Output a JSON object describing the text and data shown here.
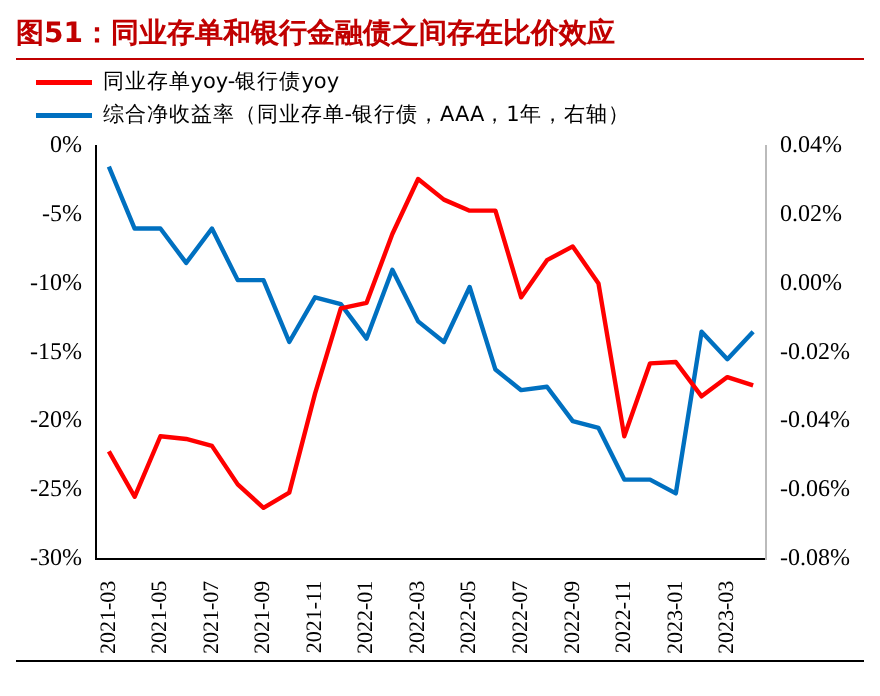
{
  "chart_data": {
    "type": "line",
    "title": "图51：同业存单和银行金融债之间存在比价效应",
    "categories": [
      "2021-03",
      null,
      "2021-05",
      null,
      "2021-07",
      null,
      "2021-09",
      null,
      "2021-11",
      null,
      "2022-01",
      null,
      "2022-03",
      null,
      "2022-05",
      null,
      "2022-07",
      null,
      "2022-09",
      null,
      "2022-11",
      null,
      "2023-01",
      null,
      "2023-03",
      null
    ],
    "series": [
      {
        "name": "同业存单yoy-银行债yoy",
        "color": "#ff0000",
        "values": [
          -22.2,
          -25.5,
          -21.1,
          -21.3,
          -21.8,
          -24.6,
          -26.3,
          -25.2,
          -18,
          -11.8,
          -11.4,
          -6.4,
          -2.4,
          -3.9,
          -4.7,
          -4.7,
          -11.0,
          -8.3,
          -7.3,
          -10.0,
          -21.1,
          -15.8,
          -15.7,
          -18.2,
          -16.8,
          -17.4
        ]
      },
      {
        "name": "综合净收益率（同业存单-银行债，AAA，1年，右轴）",
        "color": "#0070c0",
        "axis": "y2",
        "values": [
          0.034,
          0.016,
          0.016,
          0.006,
          0.016,
          0.001,
          0.001,
          -0.017,
          -0.004,
          -0.006,
          -0.016,
          0.004,
          -0.011,
          -0.017,
          -0.001,
          -0.025,
          -0.031,
          -0.03,
          -0.04,
          -0.042,
          -0.057,
          -0.057,
          -0.061,
          -0.014,
          -0.022,
          -0.014
        ]
      }
    ],
    "ylim": [
      -30,
      0
    ],
    "yticks": [
      {
        "value": -30,
        "label": "-30%"
      },
      {
        "value": -25,
        "label": "-25%"
      },
      {
        "value": -20,
        "label": "-20%"
      },
      {
        "value": -15,
        "label": "-15%"
      },
      {
        "value": -10,
        "label": "-10%"
      },
      {
        "value": -5,
        "label": "-5%"
      },
      {
        "value": 0,
        "label": "0%"
      }
    ],
    "y2lim": [
      -0.08,
      0.04
    ],
    "y2ticks": [
      {
        "value": -0.08,
        "label": "-0.08%"
      },
      {
        "value": -0.06,
        "label": "-0.06%"
      },
      {
        "value": -0.04,
        "label": "-0.04%"
      },
      {
        "value": -0.02,
        "label": "-0.02%"
      },
      {
        "value": 0,
        "label": "0.00%"
      },
      {
        "value": 0.02,
        "label": "0.02%"
      },
      {
        "value": 0.04,
        "label": "0.04%"
      }
    ],
    "grid": false,
    "legend": "top left",
    "marker": "none",
    "line_style": "solid"
  }
}
